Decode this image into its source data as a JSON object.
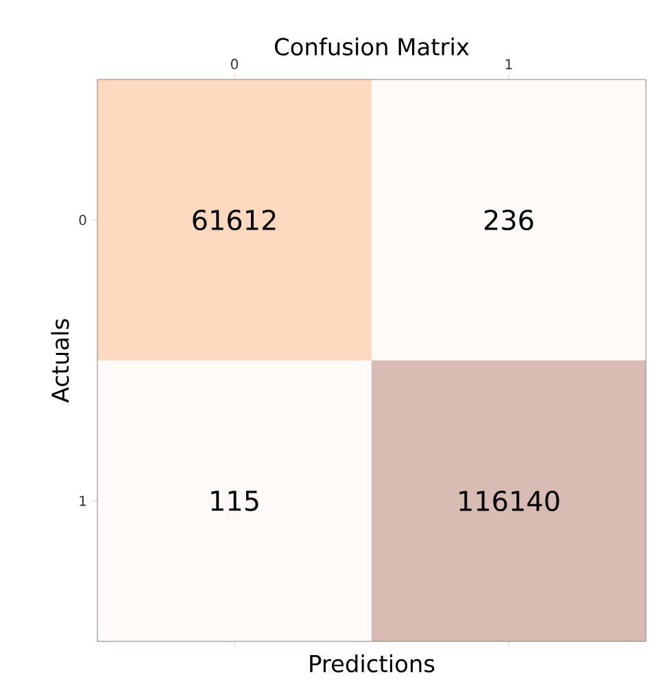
{
  "chart_data": {
    "type": "heatmap",
    "title": "Confusion Matrix",
    "xlabel": "Predictions",
    "ylabel": "Actuals",
    "categories": [
      "0",
      "1"
    ],
    "y_categories": [
      "0",
      "1"
    ],
    "cells": [
      [
        61612,
        236
      ],
      [
        115,
        116140
      ]
    ],
    "colors": [
      [
        "#fdd9c0",
        "#fffaf7"
      ],
      [
        "#fffaf7",
        "#d8bbb2"
      ]
    ],
    "data_labels": true
  }
}
